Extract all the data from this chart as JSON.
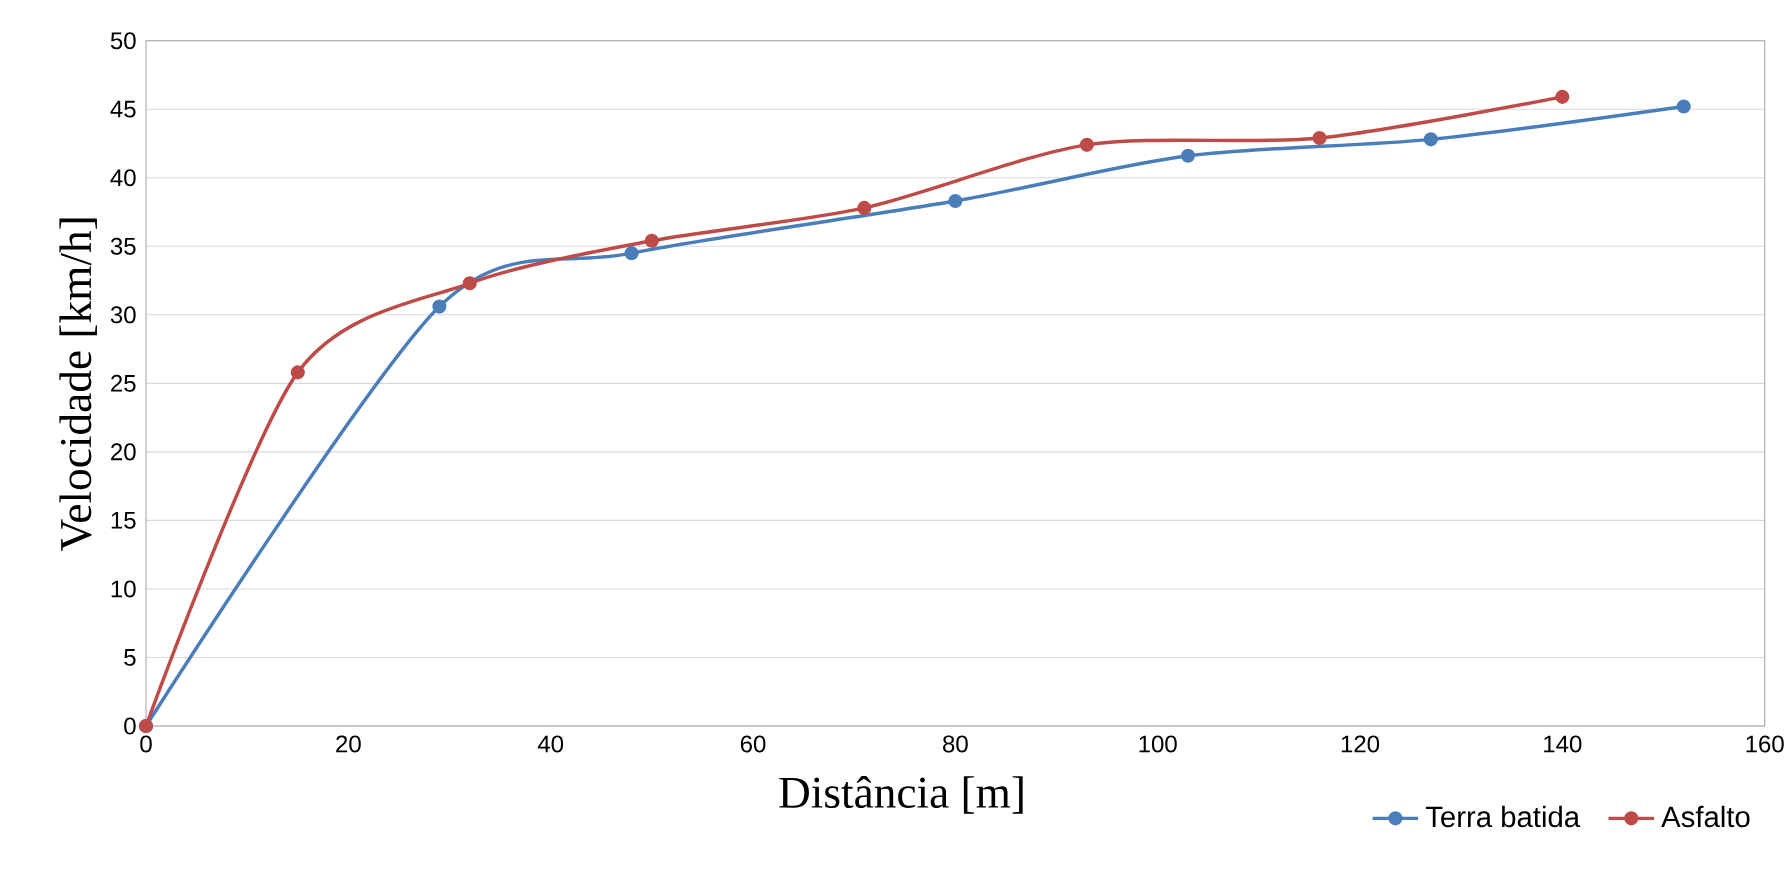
{
  "chart_data": {
    "type": "line",
    "xlabel": "Distância [m]",
    "ylabel": "Velocidade [km/h]",
    "xlim": [
      0,
      160
    ],
    "ylim": [
      0,
      50
    ],
    "xticks": [
      0,
      20,
      40,
      60,
      80,
      100,
      120,
      140,
      160
    ],
    "yticks": [
      0,
      5,
      10,
      15,
      20,
      25,
      30,
      35,
      40,
      45,
      50
    ],
    "grid": "y",
    "legend": "bottom right",
    "marker": "circle",
    "line_style": "solid",
    "series": [
      {
        "name": "Terra batida",
        "color": "#4a7ebb",
        "x": [
          0,
          29,
          48,
          80,
          103,
          127,
          152
        ],
        "values": [
          0,
          30.6,
          34.5,
          38.3,
          41.6,
          42.8,
          45.2
        ]
      },
      {
        "name": "Asfalto",
        "color": "#be4b48",
        "x": [
          0,
          15,
          32,
          50,
          71,
          93,
          116,
          140
        ],
        "values": [
          0,
          25.8,
          32.3,
          35.4,
          37.8,
          42.4,
          42.9,
          45.9
        ]
      }
    ]
  }
}
